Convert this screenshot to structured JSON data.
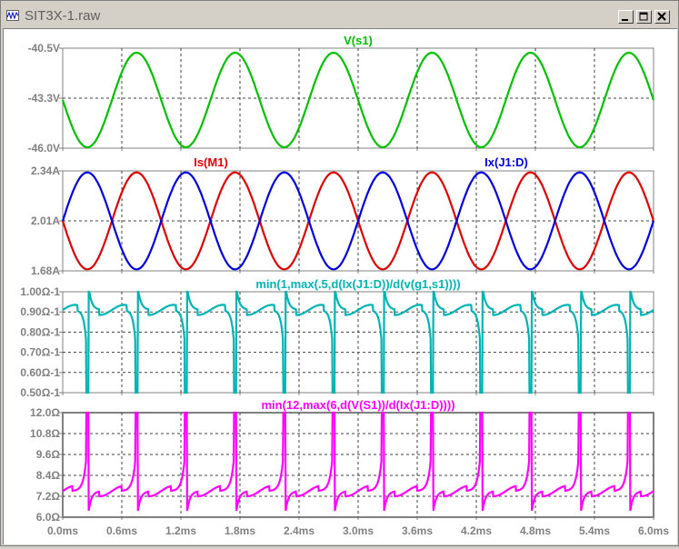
{
  "window": {
    "title": "SIT3X-1.raw",
    "buttons": [
      {
        "name": "minimize-button",
        "glyph": "_"
      },
      {
        "name": "maximize-button",
        "glyph": "□"
      },
      {
        "name": "close-button",
        "glyph": "×"
      }
    ]
  },
  "x_axis": {
    "ticks": [
      "0.0ms",
      "0.6ms",
      "1.2ms",
      "1.8ms",
      "2.4ms",
      "3.0ms",
      "3.6ms",
      "4.2ms",
      "4.8ms",
      "5.4ms",
      "6.0ms"
    ],
    "range_ms": [
      0,
      6.0
    ],
    "grid": true
  },
  "colors": {
    "green": "#00c000",
    "red": "#e00000",
    "blue": "#0000e0",
    "cyan": "#00b4b4",
    "magenta": "#ff00ff",
    "grid": "#404040",
    "tick_label": "#808080"
  },
  "chart_data": [
    {
      "type": "line",
      "panel": "panel-1",
      "x_units": "ms",
      "ylim": [
        -46.0,
        -40.5
      ],
      "yticks": [
        "-40.5V",
        "-43.3V",
        "-46.0V"
      ],
      "grid": true,
      "series": [
        {
          "name": "V(s1)",
          "color": "green",
          "shape": "sine",
          "period_ms": 1.0,
          "mean": -43.35,
          "amplitude": 2.6,
          "phase_deg": 0,
          "x_start_ms": 0,
          "x_end_ms": 6.0
        }
      ]
    },
    {
      "type": "line",
      "panel": "panel-2",
      "x_units": "ms",
      "ylim": [
        1.68,
        2.34
      ],
      "yticks": [
        "2.34A",
        "2.01A",
        "1.68A"
      ],
      "grid": true,
      "series": [
        {
          "name": "Is(M1)",
          "color": "red",
          "shape": "sine",
          "period_ms": 1.0,
          "mean": 2.01,
          "amplitude": 0.32,
          "phase_deg": 0,
          "x_start_ms": 0,
          "x_end_ms": 6.0
        },
        {
          "name": "Ix(J1:D)",
          "color": "blue",
          "shape": "sine",
          "period_ms": 1.0,
          "mean": 2.01,
          "amplitude": 0.32,
          "phase_deg": 180,
          "x_start_ms": 0,
          "x_end_ms": 6.0
        }
      ]
    },
    {
      "type": "line",
      "panel": "panel-3",
      "x_units": "ms",
      "ylim": [
        0.5,
        1.0
      ],
      "yticks": [
        "1.00Ω-1",
        "0.90Ω-1",
        "0.80Ω-1",
        "0.70Ω-1",
        "0.60Ω-1",
        "0.50Ω-1"
      ],
      "grid": true,
      "series": [
        {
          "name": "min(1,max(.5,d(Ix(J1:D))/d(v(g1,s1))))",
          "color": "cyan",
          "shape": "clipped-derivative",
          "period_ms": 1.0,
          "min": 0.5,
          "max": 1.0,
          "spike_ms_offsets": [
            0.25,
            0.75
          ],
          "x_start_ms": 0,
          "x_end_ms": 6.0
        }
      ]
    },
    {
      "type": "line",
      "panel": "panel-4",
      "x_units": "ms",
      "ylim": [
        6.0,
        12.0
      ],
      "yticks": [
        "12.0Ω",
        "10.8Ω",
        "9.6Ω",
        "8.4Ω",
        "7.2Ω",
        "6.0Ω"
      ],
      "grid": true,
      "series": [
        {
          "name": "min(12,max(6,d(V(S1))/d(Ix(J1:D))))",
          "color": "magenta",
          "shape": "clipped-derivative",
          "period_ms": 1.0,
          "min": 6.0,
          "max": 12.0,
          "spike_ms_offsets": [
            0.25,
            0.75
          ],
          "x_start_ms": 0,
          "x_end_ms": 6.0
        }
      ]
    }
  ]
}
